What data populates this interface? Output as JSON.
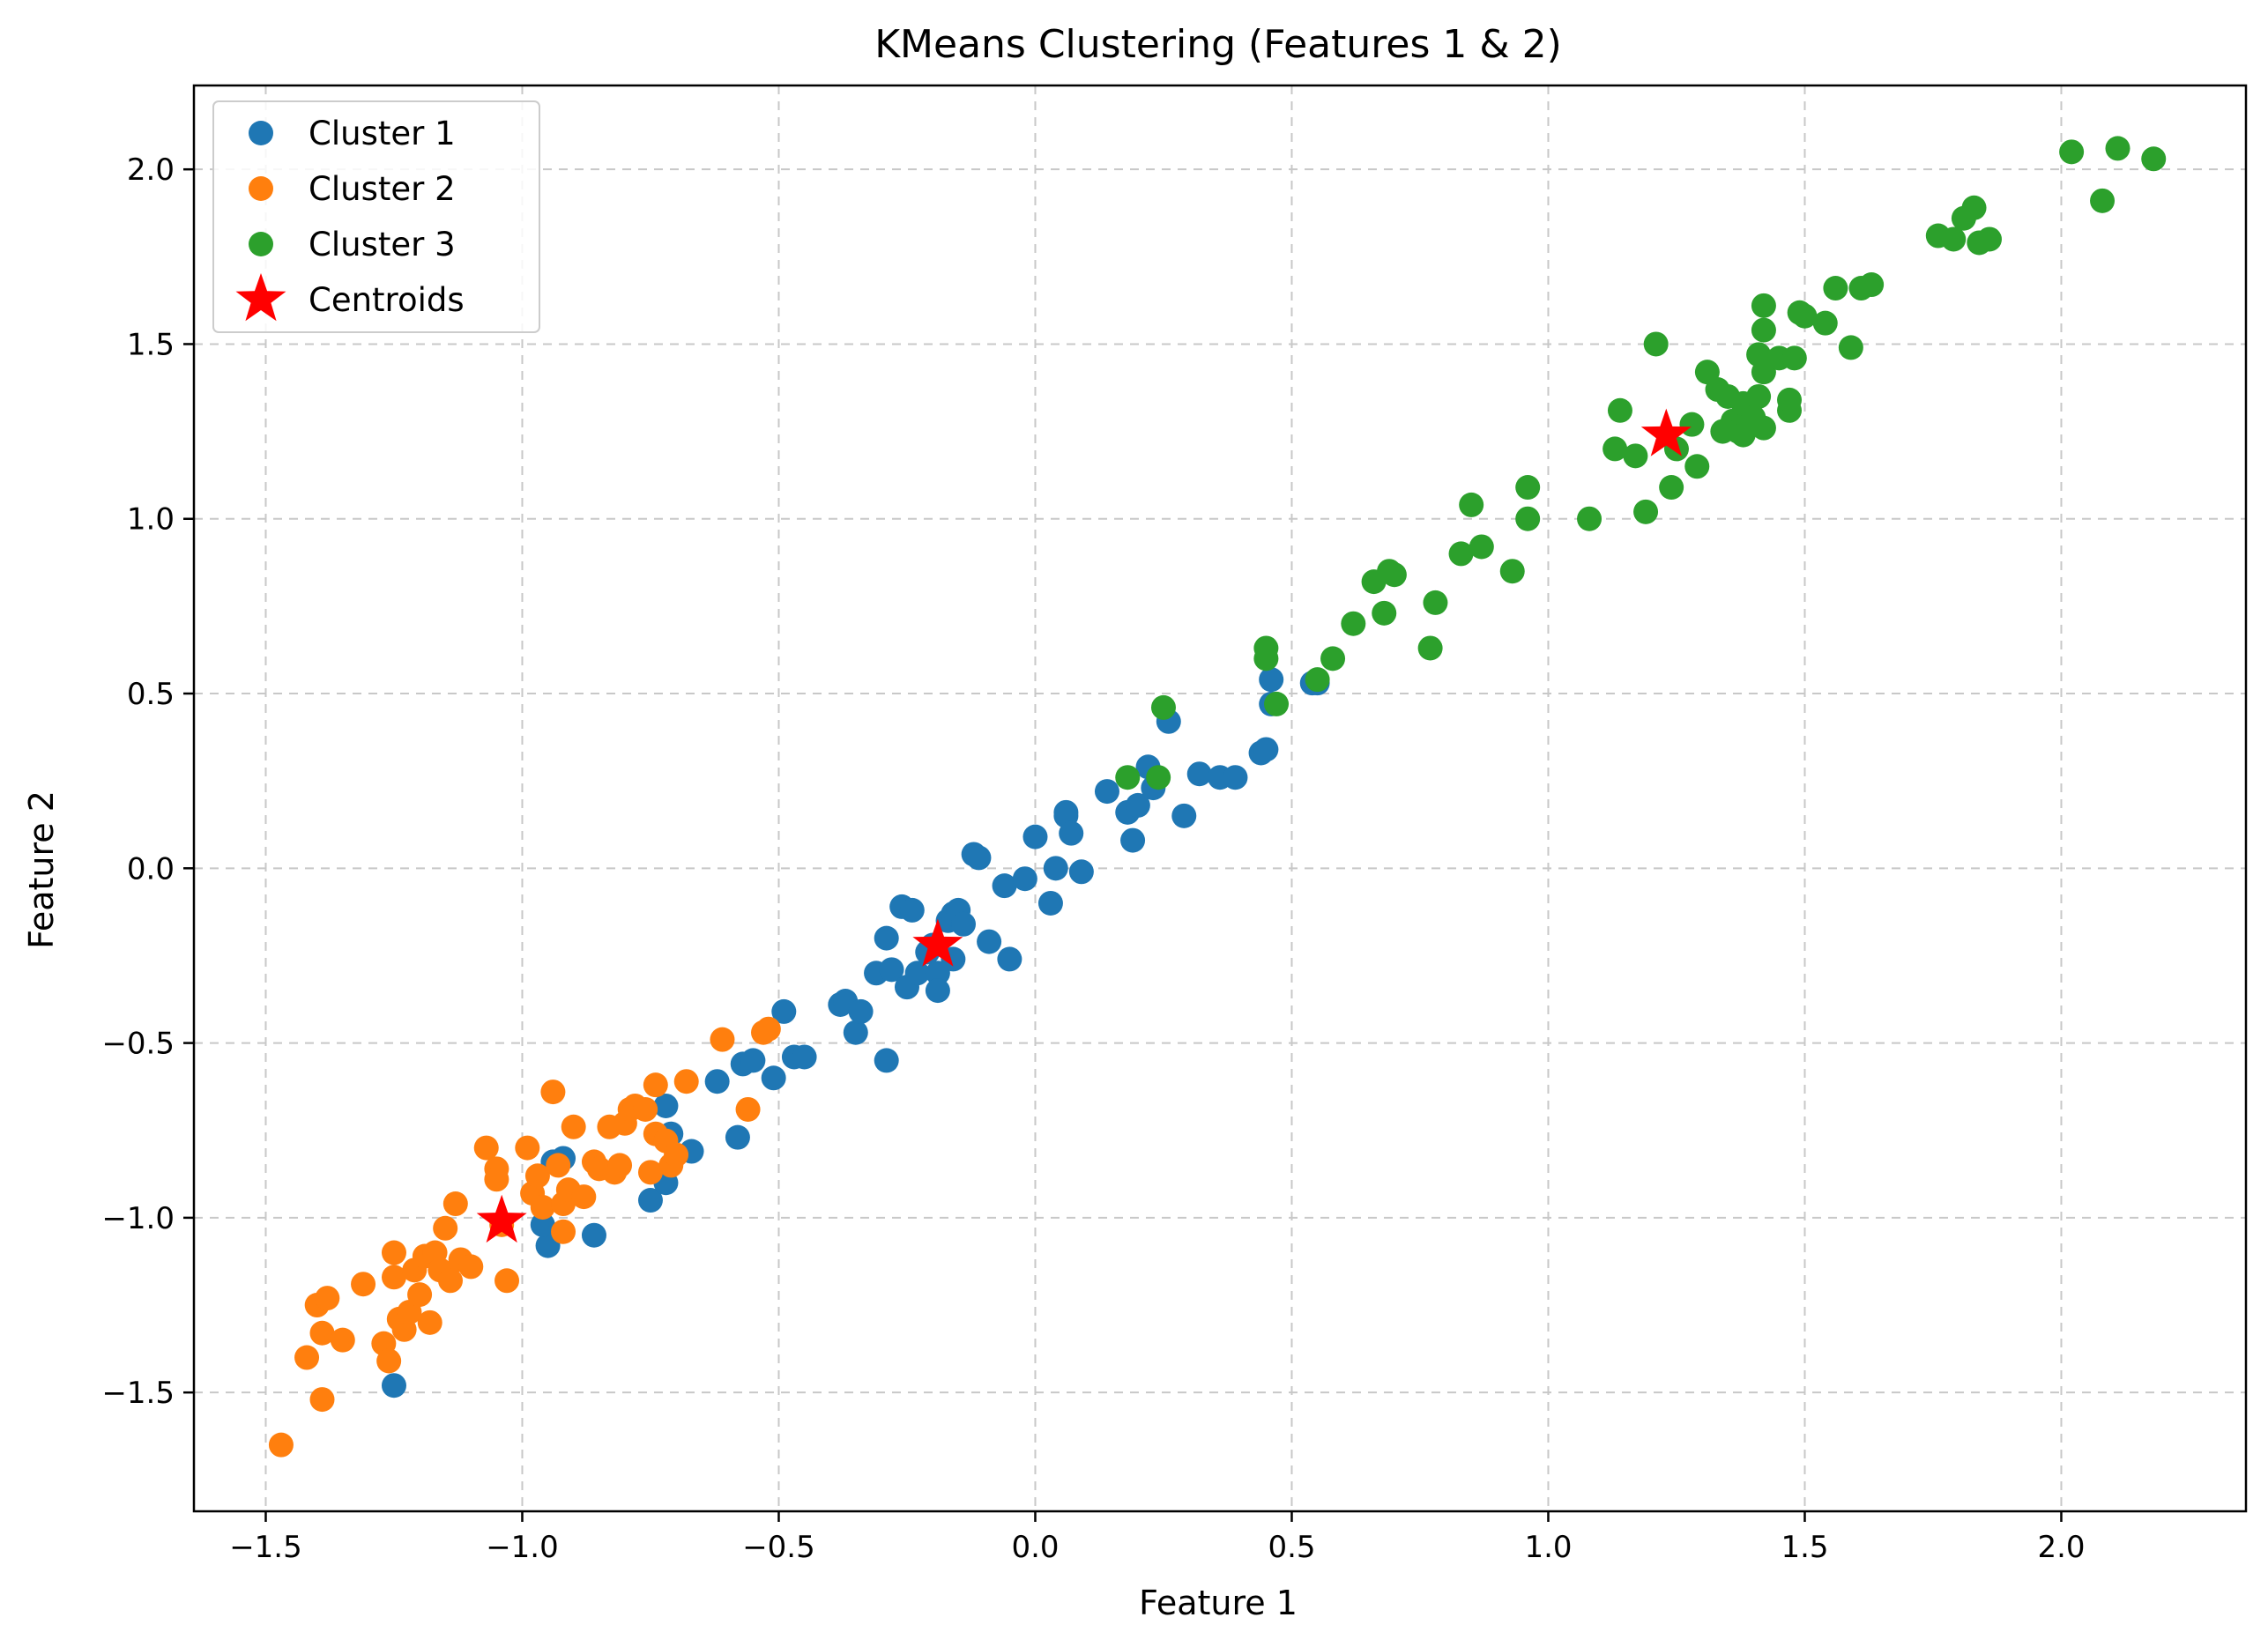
{
  "chart_data": {
    "type": "scatter",
    "title": "KMeans Clustering (Features 1 & 2)",
    "xlabel": "Feature 1",
    "ylabel": "Feature 2",
    "xlim": [
      -1.64,
      2.36
    ],
    "ylim": [
      -1.84,
      2.24
    ],
    "xticks": [
      -1.5,
      -1.0,
      -0.5,
      0.0,
      0.5,
      1.0,
      1.5,
      2.0
    ],
    "yticks": [
      -1.5,
      -1.0,
      -0.5,
      0.0,
      0.5,
      1.0,
      1.5,
      2.0
    ],
    "grid": true,
    "legend_position": "top-left",
    "series": [
      {
        "name": "Cluster 1",
        "color": "#1f77b4",
        "marker": "circle",
        "points": [
          [
            -1.25,
            -1.48
          ],
          [
            -0.95,
            -1.08
          ],
          [
            -0.96,
            -1.02
          ],
          [
            -0.86,
            -1.05
          ],
          [
            -0.92,
            -0.83
          ],
          [
            -0.94,
            -0.84
          ],
          [
            -0.75,
            -0.95
          ],
          [
            -0.72,
            -0.9
          ],
          [
            -0.72,
            -0.68
          ],
          [
            -0.71,
            -0.76
          ],
          [
            -0.67,
            -0.81
          ],
          [
            -0.62,
            -0.61
          ],
          [
            -0.58,
            -0.77
          ],
          [
            -0.57,
            -0.56
          ],
          [
            -0.55,
            -0.55
          ],
          [
            -0.51,
            -0.6
          ],
          [
            -0.49,
            -0.41
          ],
          [
            -0.47,
            -0.54
          ],
          [
            -0.45,
            -0.54
          ],
          [
            -0.38,
            -0.39
          ],
          [
            -0.37,
            -0.38
          ],
          [
            -0.35,
            -0.47
          ],
          [
            -0.34,
            -0.41
          ],
          [
            -0.31,
            -0.3
          ],
          [
            -0.29,
            -0.55
          ],
          [
            -0.29,
            -0.2
          ],
          [
            -0.28,
            -0.29
          ],
          [
            -0.26,
            -0.11
          ],
          [
            -0.25,
            -0.34
          ],
          [
            -0.24,
            -0.12
          ],
          [
            -0.23,
            -0.3
          ],
          [
            -0.21,
            -0.24
          ],
          [
            -0.2,
            -0.22
          ],
          [
            -0.19,
            -0.3
          ],
          [
            -0.19,
            -0.35
          ],
          [
            -0.17,
            -0.15
          ],
          [
            -0.16,
            -0.26
          ],
          [
            -0.16,
            -0.13
          ],
          [
            -0.15,
            -0.12
          ],
          [
            -0.14,
            -0.16
          ],
          [
            -0.12,
            0.04
          ],
          [
            -0.11,
            0.03
          ],
          [
            -0.09,
            -0.21
          ],
          [
            -0.06,
            -0.05
          ],
          [
            -0.05,
            -0.26
          ],
          [
            -0.02,
            -0.03
          ],
          [
            0.0,
            0.09
          ],
          [
            0.03,
            -0.1
          ],
          [
            0.04,
            0.0
          ],
          [
            0.06,
            0.15
          ],
          [
            0.06,
            0.16
          ],
          [
            0.07,
            0.1
          ],
          [
            0.09,
            -0.01
          ],
          [
            0.14,
            0.22
          ],
          [
            0.18,
            0.16
          ],
          [
            0.19,
            0.08
          ],
          [
            0.2,
            0.18
          ],
          [
            0.22,
            0.29
          ],
          [
            0.23,
            0.23
          ],
          [
            0.26,
            0.42
          ],
          [
            0.29,
            0.15
          ],
          [
            0.32,
            0.27
          ],
          [
            0.36,
            0.26
          ],
          [
            0.39,
            0.26
          ],
          [
            0.44,
            0.33
          ],
          [
            0.45,
            0.34
          ],
          [
            0.46,
            0.54
          ],
          [
            0.46,
            0.47
          ],
          [
            0.54,
            0.53
          ],
          [
            0.55,
            0.53
          ]
        ]
      },
      {
        "name": "Cluster 2",
        "color": "#ff7f0e",
        "marker": "circle",
        "points": [
          [
            -1.47,
            -1.65
          ],
          [
            -1.42,
            -1.4
          ],
          [
            -1.4,
            -1.25
          ],
          [
            -1.39,
            -1.52
          ],
          [
            -1.38,
            -1.23
          ],
          [
            -1.39,
            -1.33
          ],
          [
            -1.35,
            -1.35
          ],
          [
            -1.31,
            -1.19
          ],
          [
            -1.27,
            -1.36
          ],
          [
            -1.26,
            -1.41
          ],
          [
            -1.25,
            -1.17
          ],
          [
            -1.25,
            -1.1
          ],
          [
            -1.24,
            -1.29
          ],
          [
            -1.23,
            -1.32
          ],
          [
            -1.22,
            -1.27
          ],
          [
            -1.21,
            -1.15
          ],
          [
            -1.2,
            -1.22
          ],
          [
            -1.19,
            -1.11
          ],
          [
            -1.18,
            -1.3
          ],
          [
            -1.17,
            -1.1
          ],
          [
            -1.16,
            -1.15
          ],
          [
            -1.15,
            -1.03
          ],
          [
            -1.14,
            -1.18
          ],
          [
            -1.13,
            -0.96
          ],
          [
            -1.12,
            -1.12
          ],
          [
            -1.1,
            -1.14
          ],
          [
            -1.07,
            -0.8
          ],
          [
            -1.05,
            -0.86
          ],
          [
            -1.05,
            -0.89
          ],
          [
            -1.04,
            -1.02
          ],
          [
            -1.03,
            -1.18
          ],
          [
            -0.99,
            -0.8
          ],
          [
            -0.98,
            -0.93
          ],
          [
            -0.97,
            -0.88
          ],
          [
            -0.96,
            -0.97
          ],
          [
            -0.94,
            -0.64
          ],
          [
            -0.93,
            -0.85
          ],
          [
            -0.92,
            -0.96
          ],
          [
            -0.92,
            -1.04
          ],
          [
            -0.91,
            -0.92
          ],
          [
            -0.9,
            -0.74
          ],
          [
            -0.88,
            -0.94
          ],
          [
            -0.86,
            -0.84
          ],
          [
            -0.85,
            -0.86
          ],
          [
            -0.83,
            -0.74
          ],
          [
            -0.82,
            -0.87
          ],
          [
            -0.81,
            -0.85
          ],
          [
            -0.8,
            -0.73
          ],
          [
            -0.79,
            -0.69
          ],
          [
            -0.78,
            -0.68
          ],
          [
            -0.76,
            -0.69
          ],
          [
            -0.75,
            -0.87
          ],
          [
            -0.74,
            -0.62
          ],
          [
            -0.74,
            -0.76
          ],
          [
            -0.72,
            -0.78
          ],
          [
            -0.71,
            -0.85
          ],
          [
            -0.7,
            -0.82
          ],
          [
            -0.68,
            -0.61
          ],
          [
            -0.61,
            -0.49
          ],
          [
            -0.56,
            -0.69
          ],
          [
            -0.53,
            -0.47
          ],
          [
            -0.52,
            -0.46
          ]
        ]
      },
      {
        "name": "Cluster 3",
        "color": "#2ca02c",
        "marker": "circle",
        "points": [
          [
            0.18,
            0.26
          ],
          [
            0.24,
            0.26
          ],
          [
            0.25,
            0.46
          ],
          [
            0.45,
            0.63
          ],
          [
            0.45,
            0.6
          ],
          [
            0.47,
            0.47
          ],
          [
            0.55,
            0.54
          ],
          [
            0.58,
            0.6
          ],
          [
            0.62,
            0.7
          ],
          [
            0.66,
            0.82
          ],
          [
            0.68,
            0.73
          ],
          [
            0.69,
            0.85
          ],
          [
            0.7,
            0.84
          ],
          [
            0.77,
            0.63
          ],
          [
            0.78,
            0.76
          ],
          [
            0.83,
            0.9
          ],
          [
            0.85,
            1.04
          ],
          [
            0.87,
            0.92
          ],
          [
            0.93,
            0.85
          ],
          [
            0.96,
            1.09
          ],
          [
            0.96,
            1.0
          ],
          [
            1.08,
            1.0
          ],
          [
            1.13,
            1.2
          ],
          [
            1.14,
            1.31
          ],
          [
            1.17,
            1.18
          ],
          [
            1.19,
            1.02
          ],
          [
            1.21,
            1.5
          ],
          [
            1.24,
            1.09
          ],
          [
            1.25,
            1.2
          ],
          [
            1.28,
            1.27
          ],
          [
            1.29,
            1.15
          ],
          [
            1.31,
            1.42
          ],
          [
            1.33,
            1.37
          ],
          [
            1.34,
            1.25
          ],
          [
            1.35,
            1.35
          ],
          [
            1.36,
            1.28
          ],
          [
            1.37,
            1.25
          ],
          [
            1.38,
            1.33
          ],
          [
            1.38,
            1.24
          ],
          [
            1.4,
            1.29
          ],
          [
            1.41,
            1.35
          ],
          [
            1.41,
            1.47
          ],
          [
            1.42,
            1.42
          ],
          [
            1.42,
            1.26
          ],
          [
            1.42,
            1.61
          ],
          [
            1.42,
            1.54
          ],
          [
            1.45,
            1.46
          ],
          [
            1.47,
            1.31
          ],
          [
            1.47,
            1.34
          ],
          [
            1.48,
            1.46
          ],
          [
            1.49,
            1.59
          ],
          [
            1.5,
            1.58
          ],
          [
            1.54,
            1.56
          ],
          [
            1.56,
            1.66
          ],
          [
            1.59,
            1.49
          ],
          [
            1.61,
            1.66
          ],
          [
            1.63,
            1.67
          ],
          [
            1.76,
            1.81
          ],
          [
            1.79,
            1.8
          ],
          [
            1.81,
            1.86
          ],
          [
            1.83,
            1.89
          ],
          [
            1.84,
            1.79
          ],
          [
            1.86,
            1.8
          ],
          [
            2.02,
            2.05
          ],
          [
            2.08,
            1.91
          ],
          [
            2.11,
            2.06
          ],
          [
            2.18,
            2.03
          ]
        ]
      },
      {
        "name": "Centroids",
        "color": "#ff0000",
        "marker": "star",
        "points": [
          [
            -1.04,
            -1.01
          ],
          [
            -0.19,
            -0.22
          ],
          [
            1.23,
            1.24
          ]
        ]
      }
    ]
  }
}
